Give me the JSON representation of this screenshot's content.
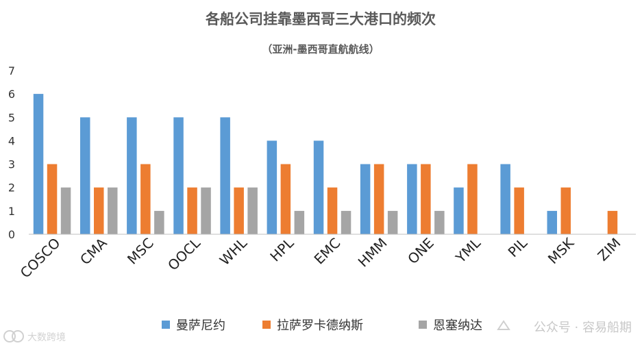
{
  "chart_data": {
    "type": "bar",
    "title": "各船公司挂靠墨西哥三大港口的频次",
    "subtitle": "（亚洲-墨西哥直航航线）",
    "categories": [
      "COSCO",
      "CMA",
      "MSC",
      "OOCL",
      "WHL",
      "HPL",
      "EMC",
      "HMM",
      "ONE",
      "YML",
      "PIL",
      "MSK",
      "ZIM"
    ],
    "series": [
      {
        "name": "曼萨尼约",
        "color": "#5B9BD5",
        "values": [
          6,
          5,
          5,
          5,
          5,
          4,
          4,
          3,
          3,
          2,
          3,
          1,
          0
        ]
      },
      {
        "name": "拉萨罗卡德纳斯",
        "color": "#ED7D31",
        "values": [
          3,
          2,
          3,
          2,
          2,
          3,
          2,
          3,
          3,
          3,
          2,
          2,
          1
        ]
      },
      {
        "name": "恩塞纳达",
        "color": "#A5A5A5",
        "values": [
          2,
          2,
          1,
          2,
          2,
          1,
          1,
          1,
          1,
          0,
          0,
          0,
          0
        ]
      }
    ],
    "ylim": [
      0,
      7
    ],
    "yticks": [
      "0",
      "1",
      "2",
      "3",
      "4",
      "5",
      "6",
      "7"
    ],
    "grid": false,
    "legend_position": "bottom"
  },
  "watermarks": {
    "left": "大数跨境",
    "right": "公众号 · 容易船期"
  }
}
